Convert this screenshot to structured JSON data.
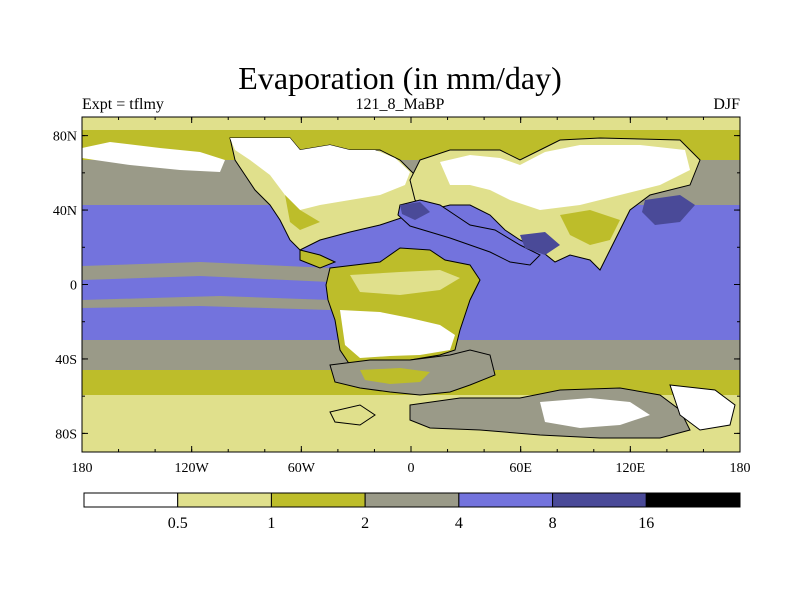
{
  "title": "Evaporation (in mm/day)",
  "left_label": "Expt = tflmy",
  "center_label": "121_8_MaBP",
  "right_label": "DJF",
  "lat_ticks": [
    "80N",
    "40N",
    "0",
    "40S",
    "80S"
  ],
  "lon_ticks": [
    "180",
    "120W",
    "60W",
    "0",
    "60E",
    "120E",
    "180"
  ],
  "colorbar": {
    "labels": [
      "0.5",
      "1",
      "2",
      "4",
      "8",
      "16"
    ],
    "colors": [
      "#ffffff",
      "#e0e08c",
      "#bdbd2a",
      "#9a9a88",
      "#7373dd",
      "#4a4a98",
      "#000000"
    ]
  },
  "palette": {
    "land_dry": "#ffffff",
    "light_yellow": "#e0e08c",
    "olive": "#bdbd2a",
    "gray": "#9a9a88",
    "blue": "#7373dd",
    "dark_blue": "#4a4a98"
  }
}
